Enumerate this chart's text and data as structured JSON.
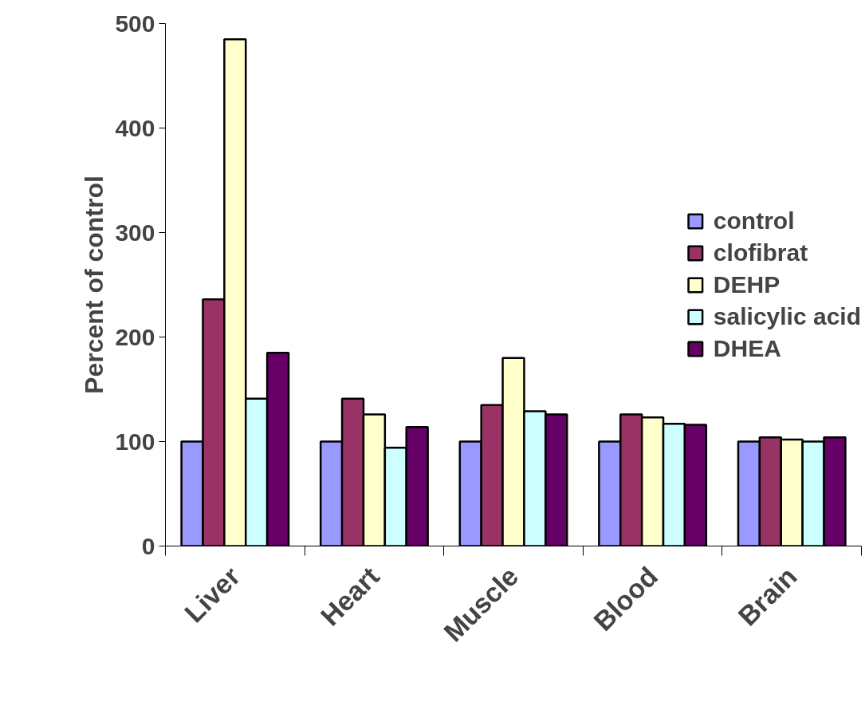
{
  "chart_data": {
    "type": "bar",
    "ylabel": "Percent of control",
    "categories": [
      "Liver",
      "Heart",
      "Muscle",
      "Blood",
      "Brain"
    ],
    "series": [
      {
        "name": "control",
        "color": "#9999ff",
        "values": [
          100,
          100,
          100,
          100,
          100
        ]
      },
      {
        "name": "clofibrat",
        "color": "#993366",
        "values": [
          236,
          141,
          135,
          126,
          104
        ]
      },
      {
        "name": "DEHP",
        "color": "#ffffcc",
        "values": [
          485,
          126,
          180,
          123,
          102
        ]
      },
      {
        "name": "salicylic acid",
        "color": "#ccffff",
        "values": [
          141,
          94,
          129,
          117,
          100
        ]
      },
      {
        "name": "DHEA",
        "color": "#660066",
        "values": [
          185,
          114,
          126,
          116,
          104
        ]
      }
    ],
    "ylim": [
      0,
      500
    ],
    "yticks": [
      0,
      100,
      200,
      300,
      400,
      500
    ],
    "grid": false,
    "legend": "right"
  }
}
